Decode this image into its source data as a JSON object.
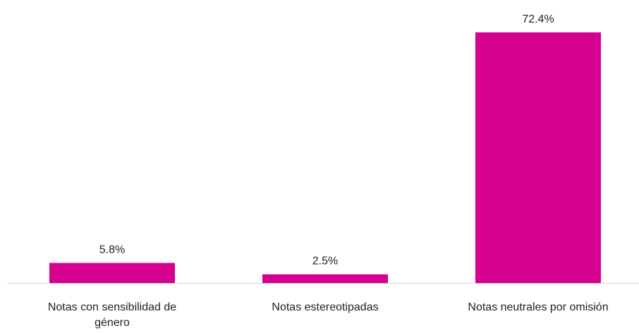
{
  "chart_data": {
    "type": "bar",
    "categories": [
      "Notas con sensibilidad de género",
      "Notas estereotipadas",
      "Notas neutrales por omisión"
    ],
    "values": [
      5.8,
      2.5,
      72.4
    ],
    "value_labels": [
      "5.8%",
      "2.5%",
      "72.4%"
    ],
    "color": "#d6008f"
  }
}
